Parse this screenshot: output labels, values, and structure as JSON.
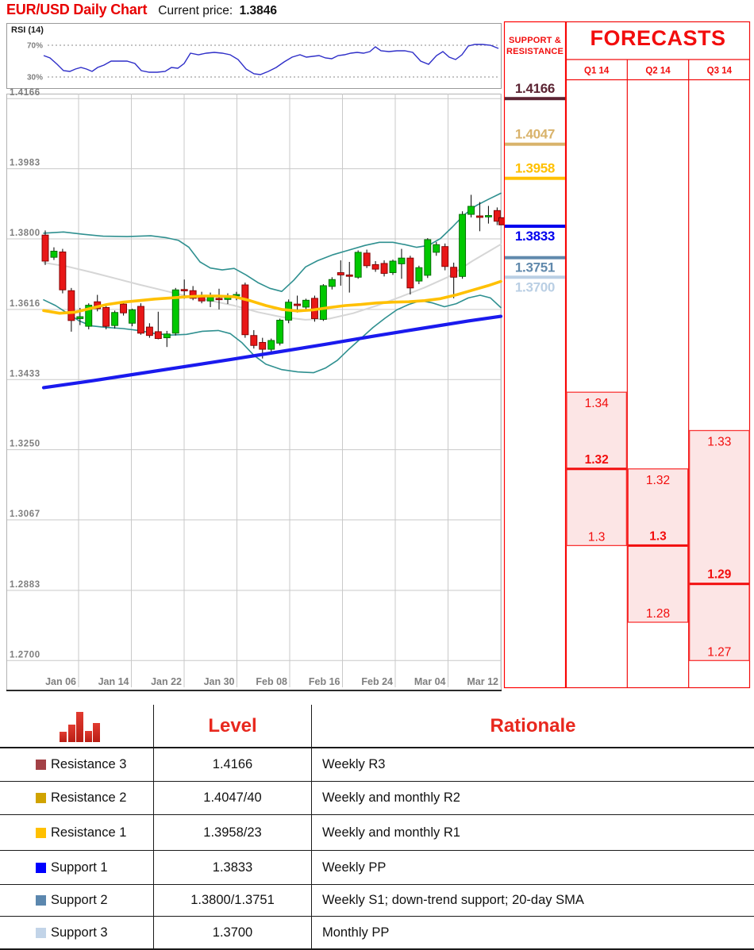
{
  "header": {
    "title": "EUR/USD Daily Chart",
    "current_price_label": "Current price:",
    "current_price_value": "1.3846"
  },
  "rsi_panel": {
    "label": "RSI (14)",
    "upper_tick": "70%",
    "lower_tick": "30%",
    "line_color": "#2e2ec8",
    "points": [
      [
        55,
        57
      ],
      [
        63,
        54
      ],
      [
        72,
        46
      ],
      [
        80,
        38
      ],
      [
        88,
        37
      ],
      [
        95,
        40
      ],
      [
        102,
        42
      ],
      [
        109,
        40
      ],
      [
        116,
        37
      ],
      [
        123,
        42
      ],
      [
        131,
        45
      ],
      [
        140,
        50
      ],
      [
        150,
        50
      ],
      [
        160,
        50
      ],
      [
        170,
        47
      ],
      [
        178,
        38
      ],
      [
        188,
        36
      ],
      [
        198,
        36
      ],
      [
        208,
        37
      ],
      [
        216,
        42
      ],
      [
        224,
        41
      ],
      [
        232,
        47
      ],
      [
        240,
        60
      ],
      [
        250,
        58
      ],
      [
        260,
        60
      ],
      [
        270,
        61
      ],
      [
        280,
        60
      ],
      [
        290,
        58
      ],
      [
        300,
        52
      ],
      [
        310,
        40
      ],
      [
        320,
        34
      ],
      [
        328,
        33
      ],
      [
        338,
        37
      ],
      [
        348,
        42
      ],
      [
        358,
        49
      ],
      [
        368,
        55
      ],
      [
        378,
        58
      ],
      [
        386,
        55
      ],
      [
        394,
        56
      ],
      [
        402,
        57
      ],
      [
        410,
        54
      ],
      [
        418,
        53
      ],
      [
        426,
        57
      ],
      [
        434,
        58
      ],
      [
        442,
        60
      ],
      [
        450,
        61
      ],
      [
        458,
        60
      ],
      [
        466,
        62
      ],
      [
        473,
        68
      ],
      [
        480,
        63
      ],
      [
        490,
        62
      ],
      [
        500,
        63
      ],
      [
        510,
        63
      ],
      [
        520,
        61
      ],
      [
        530,
        50
      ],
      [
        540,
        46
      ],
      [
        550,
        57
      ],
      [
        558,
        62
      ],
      [
        566,
        55
      ],
      [
        574,
        52
      ],
      [
        582,
        58
      ],
      [
        590,
        69
      ],
      [
        598,
        71
      ],
      [
        608,
        71
      ],
      [
        618,
        70
      ],
      [
        628,
        66
      ]
    ]
  },
  "chart_data": {
    "type": "candlestick",
    "title": "EUR/USD Daily Chart",
    "current_price": 1.3846,
    "y_ticks": [
      "1.4166",
      "1.3983",
      "1.3800",
      "1.3616",
      "1.3433",
      "1.3250",
      "1.3067",
      "1.2883",
      "1.2700"
    ],
    "x_labels": [
      "Jan 06",
      "Jan 14",
      "Jan 22",
      "Jan 30",
      "Feb 08",
      "Feb 16",
      "Feb 24",
      "Mar 04",
      "Mar 12"
    ],
    "ylim": [
      1.263,
      1.418
    ],
    "grid": true,
    "candle_up_color": "#00c800",
    "candle_down_color": "#e81717",
    "marker_color": "#e01212",
    "candles": [
      [
        1.381,
        1.3822,
        1.3732,
        1.3742
      ],
      [
        1.3752,
        1.3778,
        1.3745,
        1.3768
      ],
      [
        1.3766,
        1.3774,
        1.3658,
        1.3667
      ],
      [
        1.3665,
        1.3672,
        1.3558,
        1.3587
      ],
      [
        1.3592,
        1.362,
        1.3575,
        1.3597
      ],
      [
        1.3572,
        1.3632,
        1.3564,
        1.3627
      ],
      [
        1.3636,
        1.3654,
        1.3611,
        1.3618
      ],
      [
        1.3621,
        1.363,
        1.3564,
        1.3572
      ],
      [
        1.3574,
        1.3613,
        1.3566,
        1.3608
      ],
      [
        1.363,
        1.3636,
        1.36,
        1.3607
      ],
      [
        1.358,
        1.3618,
        1.3572,
        1.3615
      ],
      [
        1.3624,
        1.3632,
        1.355,
        1.3554
      ],
      [
        1.357,
        1.358,
        1.3542,
        1.3548
      ],
      [
        1.3558,
        1.361,
        1.3538,
        1.354
      ],
      [
        1.3542,
        1.356,
        1.3518,
        1.3552
      ],
      [
        1.3554,
        1.3672,
        1.3548,
        1.3667
      ],
      [
        1.3668,
        1.3694,
        1.3644,
        1.3665
      ],
      [
        1.3665,
        1.3677,
        1.364,
        1.3645
      ],
      [
        1.3648,
        1.3662,
        1.3632,
        1.3638
      ],
      [
        1.3638,
        1.366,
        1.3622,
        1.3648
      ],
      [
        1.3645,
        1.367,
        1.3616,
        1.3642
      ],
      [
        1.3642,
        1.3658,
        1.363,
        1.3652
      ],
      [
        1.3652,
        1.3662,
        1.364,
        1.3655
      ],
      [
        1.368,
        1.3686,
        1.3542,
        1.355
      ],
      [
        1.3548,
        1.3562,
        1.3514,
        1.3522
      ],
      [
        1.353,
        1.3542,
        1.3488,
        1.3512
      ],
      [
        1.3512,
        1.354,
        1.3502,
        1.3535
      ],
      [
        1.3528,
        1.3592,
        1.3522,
        1.3588
      ],
      [
        1.3588,
        1.3642,
        1.358,
        1.3635
      ],
      [
        1.363,
        1.3652,
        1.3608,
        1.3626
      ],
      [
        1.3622,
        1.3644,
        1.3612,
        1.364
      ],
      [
        1.3645,
        1.3652,
        1.3584,
        1.3592
      ],
      [
        1.359,
        1.3682,
        1.3586,
        1.3678
      ],
      [
        1.3676,
        1.37,
        1.3668,
        1.3694
      ],
      [
        1.3712,
        1.3744,
        1.3678,
        1.3706
      ],
      [
        1.3706,
        1.374,
        1.366,
        1.3704
      ],
      [
        1.37,
        1.377,
        1.3696,
        1.3765
      ],
      [
        1.3763,
        1.3772,
        1.3724,
        1.373
      ],
      [
        1.3733,
        1.3742,
        1.3714,
        1.3721
      ],
      [
        1.3736,
        1.3744,
        1.3702,
        1.371
      ],
      [
        1.3712,
        1.3746,
        1.3706,
        1.3742
      ],
      [
        1.3735,
        1.3774,
        1.3696,
        1.375
      ],
      [
        1.375,
        1.3756,
        1.3655,
        1.3672
      ],
      [
        1.369,
        1.373,
        1.3682,
        1.3725
      ],
      [
        1.3705,
        1.3802,
        1.3698,
        1.3798
      ],
      [
        1.3765,
        1.3792,
        1.3756,
        1.3785
      ],
      [
        1.378,
        1.3788,
        1.3718,
        1.3728
      ],
      [
        1.3726,
        1.3738,
        1.3645,
        1.37
      ],
      [
        1.3702,
        1.3872,
        1.3696,
        1.3864
      ],
      [
        1.3864,
        1.3915,
        1.3856,
        1.3885
      ],
      [
        1.386,
        1.3896,
        1.382,
        1.3856
      ],
      [
        1.3858,
        1.3886,
        1.384,
        1.3861
      ],
      [
        1.3874,
        1.3882,
        1.3836,
        1.3846
      ]
    ],
    "overlays": {
      "sma20": {
        "name": "20-day SMA",
        "color": "#ffc000",
        "width": 3.6,
        "points": [
          [
            55,
            1.3613
          ],
          [
            75,
            1.3606
          ],
          [
            95,
            1.3609
          ],
          [
            115,
            1.3619
          ],
          [
            135,
            1.3629
          ],
          [
            155,
            1.3635
          ],
          [
            175,
            1.3639
          ],
          [
            195,
            1.3643
          ],
          [
            215,
            1.3646
          ],
          [
            235,
            1.3649
          ],
          [
            255,
            1.3651
          ],
          [
            275,
            1.3651
          ],
          [
            295,
            1.3649
          ],
          [
            315,
            1.3639
          ],
          [
            335,
            1.3626
          ],
          [
            355,
            1.3616
          ],
          [
            375,
            1.3612
          ],
          [
            395,
            1.3615
          ],
          [
            415,
            1.3621
          ],
          [
            435,
            1.3626
          ],
          [
            455,
            1.3629
          ],
          [
            475,
            1.3633
          ],
          [
            495,
            1.3635
          ],
          [
            515,
            1.3636
          ],
          [
            535,
            1.3639
          ],
          [
            555,
            1.3644
          ],
          [
            575,
            1.3654
          ],
          [
            595,
            1.3666
          ],
          [
            615,
            1.3678
          ],
          [
            631,
            1.3689
          ]
        ]
      },
      "trend": {
        "name": "down-trend support",
        "color": "#1a1aee",
        "width": 4.2,
        "points": [
          [
            55,
            1.3412
          ],
          [
            110,
            1.3428
          ],
          [
            170,
            1.3447
          ],
          [
            230,
            1.3466
          ],
          [
            290,
            1.3485
          ],
          [
            350,
            1.3505
          ],
          [
            410,
            1.3525
          ],
          [
            470,
            1.3546
          ],
          [
            530,
            1.3566
          ],
          [
            590,
            1.3586
          ],
          [
            631,
            1.3598
          ]
        ]
      },
      "slow_ma": {
        "name": "slow moving average",
        "color": "#d6d6d6",
        "width": 2,
        "points": [
          [
            55,
            1.3738
          ],
          [
            85,
            1.3728
          ],
          [
            115,
            1.3713
          ],
          [
            145,
            1.3697
          ],
          [
            175,
            1.3681
          ],
          [
            205,
            1.3666
          ],
          [
            235,
            1.3651
          ],
          [
            265,
            1.3639
          ],
          [
            295,
            1.3626
          ],
          [
            325,
            1.3609
          ],
          [
            355,
            1.3596
          ],
          [
            385,
            1.3589
          ],
          [
            415,
            1.3592
          ],
          [
            445,
            1.3606
          ],
          [
            475,
            1.3626
          ],
          [
            505,
            1.3649
          ],
          [
            535,
            1.3673
          ],
          [
            565,
            1.3701
          ],
          [
            595,
            1.3742
          ],
          [
            618,
            1.377
          ],
          [
            631,
            1.3786
          ]
        ]
      },
      "bb_upper": {
        "name": "Bollinger upper band",
        "color": "#2f9090",
        "width": 1.6,
        "points": [
          [
            55,
            1.3815
          ],
          [
            80,
            1.3818
          ],
          [
            105,
            1.3812
          ],
          [
            130,
            1.3807
          ],
          [
            160,
            1.3806
          ],
          [
            190,
            1.3808
          ],
          [
            210,
            1.3803
          ],
          [
            225,
            1.3796
          ],
          [
            238,
            1.3778
          ],
          [
            252,
            1.374
          ],
          [
            265,
            1.3724
          ],
          [
            280,
            1.3719
          ],
          [
            295,
            1.3723
          ],
          [
            310,
            1.3706
          ],
          [
            325,
            1.3686
          ],
          [
            340,
            1.3671
          ],
          [
            355,
            1.3663
          ],
          [
            370,
            1.3692
          ],
          [
            385,
            1.3727
          ],
          [
            400,
            1.3743
          ],
          [
            420,
            1.3759
          ],
          [
            440,
            1.3771
          ],
          [
            460,
            1.3783
          ],
          [
            478,
            1.3791
          ],
          [
            495,
            1.3791
          ],
          [
            510,
            1.3785
          ],
          [
            525,
            1.3778
          ],
          [
            540,
            1.3783
          ],
          [
            555,
            1.3801
          ],
          [
            570,
            1.3831
          ],
          [
            585,
            1.3863
          ],
          [
            600,
            1.3887
          ],
          [
            615,
            1.3903
          ],
          [
            631,
            1.3919
          ]
        ]
      },
      "bb_lower": {
        "name": "Bollinger lower band",
        "color": "#2f9090",
        "width": 1.6,
        "points": [
          [
            55,
            1.3641
          ],
          [
            70,
            1.3626
          ],
          [
            85,
            1.3606
          ],
          [
            100,
            1.3586
          ],
          [
            115,
            1.3573
          ],
          [
            135,
            1.3569
          ],
          [
            155,
            1.3566
          ],
          [
            175,
            1.3561
          ],
          [
            195,
            1.3553
          ],
          [
            215,
            1.3549
          ],
          [
            235,
            1.3551
          ],
          [
            255,
            1.3559
          ],
          [
            275,
            1.3561
          ],
          [
            290,
            1.3553
          ],
          [
            305,
            1.3529
          ],
          [
            320,
            1.3496
          ],
          [
            335,
            1.3473
          ],
          [
            355,
            1.3459
          ],
          [
            375,
            1.3453
          ],
          [
            395,
            1.3451
          ],
          [
            410,
            1.3463
          ],
          [
            425,
            1.3483
          ],
          [
            440,
            1.3513
          ],
          [
            455,
            1.3541
          ],
          [
            470,
            1.3569
          ],
          [
            485,
            1.3593
          ],
          [
            500,
            1.3615
          ],
          [
            515,
            1.3629
          ],
          [
            530,
            1.3639
          ],
          [
            545,
            1.3633
          ],
          [
            560,
            1.3623
          ],
          [
            575,
            1.3631
          ],
          [
            590,
            1.3646
          ],
          [
            605,
            1.3653
          ],
          [
            618,
            1.3646
          ],
          [
            631,
            1.3621
          ]
        ]
      }
    }
  },
  "sr_panel": {
    "header_line1": "SUPPORT &",
    "header_line2": "RESISTANCE",
    "border_color": "#ff0000",
    "levels": [
      {
        "price": "1.4166",
        "color": "#5c2433",
        "label_side": "above"
      },
      {
        "price": "1.4047",
        "color": "#d9b36b",
        "label_side": "above"
      },
      {
        "price": "1.3958",
        "color": "#ffc000",
        "label_side": "above"
      },
      {
        "price": "1.3833",
        "color": "#0000ee",
        "label_side": "below"
      },
      {
        "price": "1.3751",
        "color": "#6089ac",
        "label_side": "below"
      },
      {
        "price": "1.3700",
        "color": "#bacfe4",
        "label_side": "below"
      }
    ]
  },
  "forecasts": {
    "title": "FORECASTS",
    "text_color": "#f20d0d",
    "box_fill": "#fce5e5",
    "box_border": "#f93636",
    "quarters": [
      {
        "label": "Q1 14",
        "high": "1.34",
        "pivot": "1.32",
        "low": "1.3"
      },
      {
        "label": "Q2 14",
        "high": "1.32",
        "pivot": "1.3",
        "low": "1.28"
      },
      {
        "label": "Q3 14",
        "high": "1.33",
        "pivot": "1.29",
        "low": "1.27"
      }
    ]
  },
  "table": {
    "level_header": "Level",
    "rationale_header": "Rationale",
    "header_color": "#e8281e",
    "rows": [
      {
        "swatch": "#a34146",
        "name": "Resistance 3",
        "level": "1.4166",
        "rationale": "Weekly R3"
      },
      {
        "swatch": "#d0a300",
        "name": "Resistance 2",
        "level": "1.4047/40",
        "rationale": "Weekly and monthly R2"
      },
      {
        "swatch": "#ffc000",
        "name": "Resistance 1",
        "level": "1.3958/23",
        "rationale": "Weekly and monthly R1"
      },
      {
        "swatch": "#0000ff",
        "name": "Support 1",
        "level": "1.3833",
        "rationale": "Weekly PP"
      },
      {
        "swatch": "#5b87ae",
        "name": "Support 2",
        "level": "1.3800/1.3751",
        "rationale": "Weekly S1; down-trend support; 20-day SMA"
      },
      {
        "swatch": "#c2d4e8",
        "name": "Support 3",
        "level": "1.3700",
        "rationale": "Monthly PP"
      }
    ]
  }
}
